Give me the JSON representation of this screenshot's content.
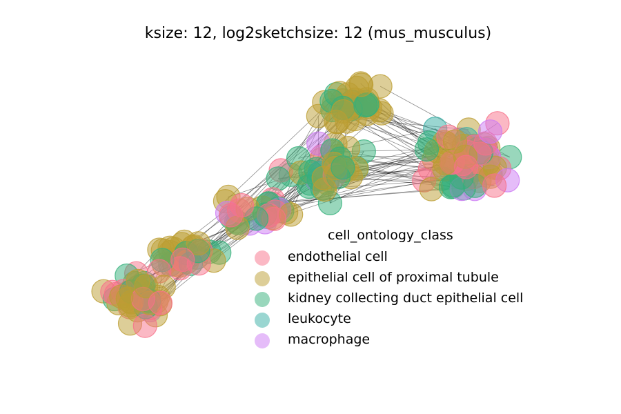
{
  "chart_data": {
    "type": "scatter",
    "subtype": "network graph",
    "title": "ksize: 12, log2sketchsize: 12 (mus_musculus)",
    "axes_visible": false,
    "grid": false,
    "legend": {
      "title": "cell_ontology_class",
      "placement": "lower-right",
      "entries": [
        {
          "label": "endothelial cell",
          "color": "#f77189"
        },
        {
          "label": "epithelial cell of proximal tubule",
          "color": "#bb9d32"
        },
        {
          "label": "kidney collecting duct epithelial cell",
          "color": "#33b07a"
        },
        {
          "label": "leukocyte",
          "color": "#36ada4"
        },
        {
          "label": "macrophage",
          "color": "#cc79f4"
        }
      ]
    },
    "edge_color": "#000000",
    "node_alpha": 0.5
  }
}
